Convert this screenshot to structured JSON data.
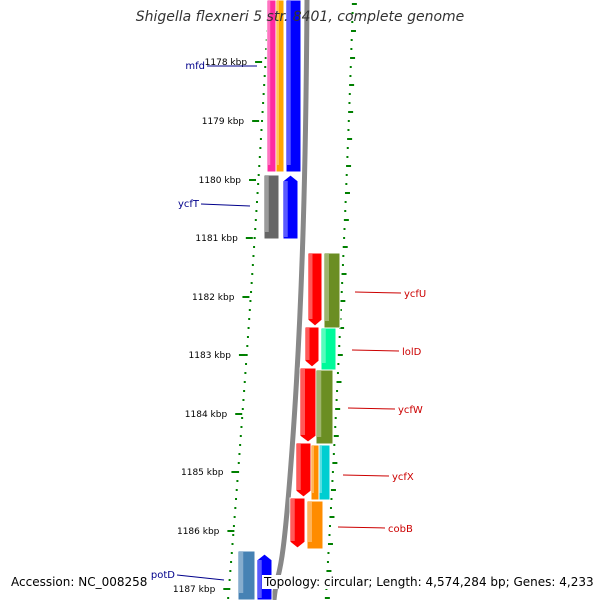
{
  "title": "Shigella flexneri 5 str. 8401, complete genome",
  "accession_text": "Accession: NC_008258",
  "summary_text": "Topology: circular; Length: 4,574,284 bp; Genes: 4,233",
  "colors": {
    "backbone": "#888888",
    "tick": "#008000",
    "ruler_label": "#000000",
    "left_gene_label": "#00008b",
    "right_gene_label": "#cc0000"
  },
  "ruler_labels": [
    "1178 kbp",
    "1179 kbp",
    "1180 kbp",
    "1181 kbp",
    "1182 kbp",
    "1183 kbp",
    "1184 kbp",
    "1185 kbp",
    "1186 kbp",
    "1187 kbp"
  ],
  "gene_labels_left": [
    "mfd",
    "ycfT",
    "potD"
  ],
  "gene_labels_right": [
    "ycfU",
    "lolD",
    "ycfW",
    "ycfX",
    "cobB"
  ],
  "legend_colors": [
    "#ff2aa0",
    "#ffa500",
    "#0000ff",
    "#666666",
    "#ff0000",
    "#6b8e23",
    "#00fa9a",
    "#00ced1",
    "#ff8c00",
    "#4682b4"
  ]
}
